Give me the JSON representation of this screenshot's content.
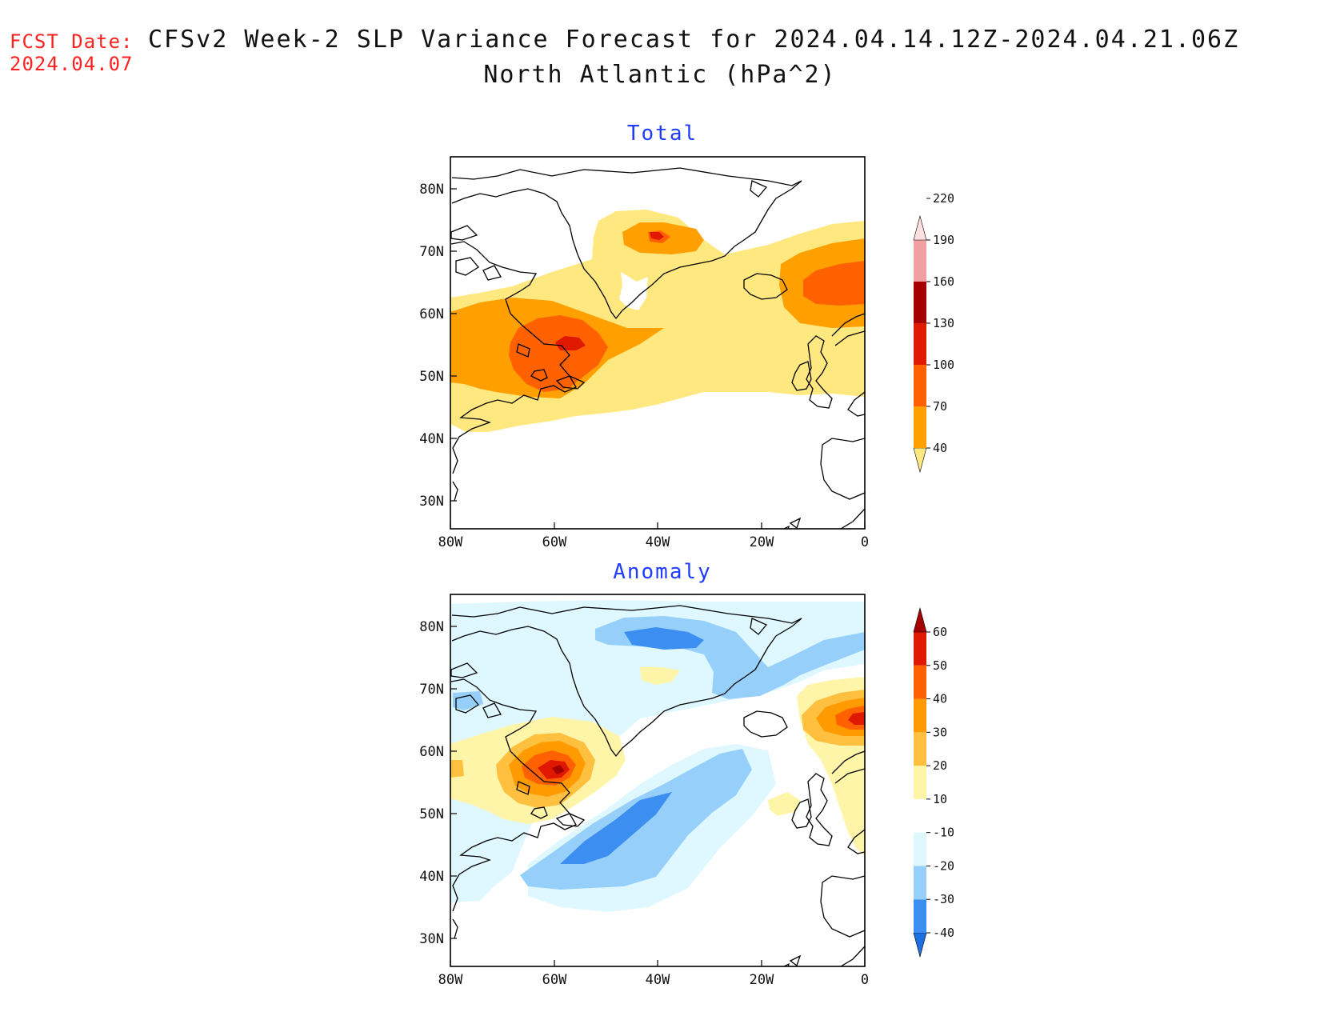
{
  "header": {
    "fcst_label": "FCST Date:",
    "fcst_date": "2024.04.07",
    "title": "CFSv2 Week-2 SLP Variance Forecast for 2024.04.14.12Z-2024.04.21.06Z",
    "subtitle": "North Atlantic (hPa^2)"
  },
  "axes": {
    "lat_labels": [
      "80N",
      "70N",
      "60N",
      "50N",
      "40N",
      "30N"
    ],
    "lon_labels": [
      "80W",
      "60W",
      "40W",
      "20W",
      "0"
    ]
  },
  "panels": [
    {
      "title": "Total",
      "colorbar": {
        "levels": [
          "40",
          "70",
          "100",
          "130",
          "160",
          "190",
          "220"
        ],
        "colors": [
          "#ffe880",
          "#ffa000",
          "#ff6000",
          "#e01800",
          "#a50000",
          "#f0a0a0",
          "#ffe0e0"
        ]
      }
    },
    {
      "title": "Anomaly",
      "colorbar": {
        "levels": [
          "-40",
          "-30",
          "-20",
          "-10",
          "10",
          "20",
          "30",
          "40",
          "50",
          "60"
        ],
        "colors": [
          "#1e6fe0",
          "#3c8ef0",
          "#96d0fa",
          "#dff8ff",
          "#ffffff",
          "#fff5a8",
          "#ffc040",
          "#ff9a00",
          "#ff6000",
          "#e01800",
          "#a50000"
        ]
      }
    }
  ]
}
